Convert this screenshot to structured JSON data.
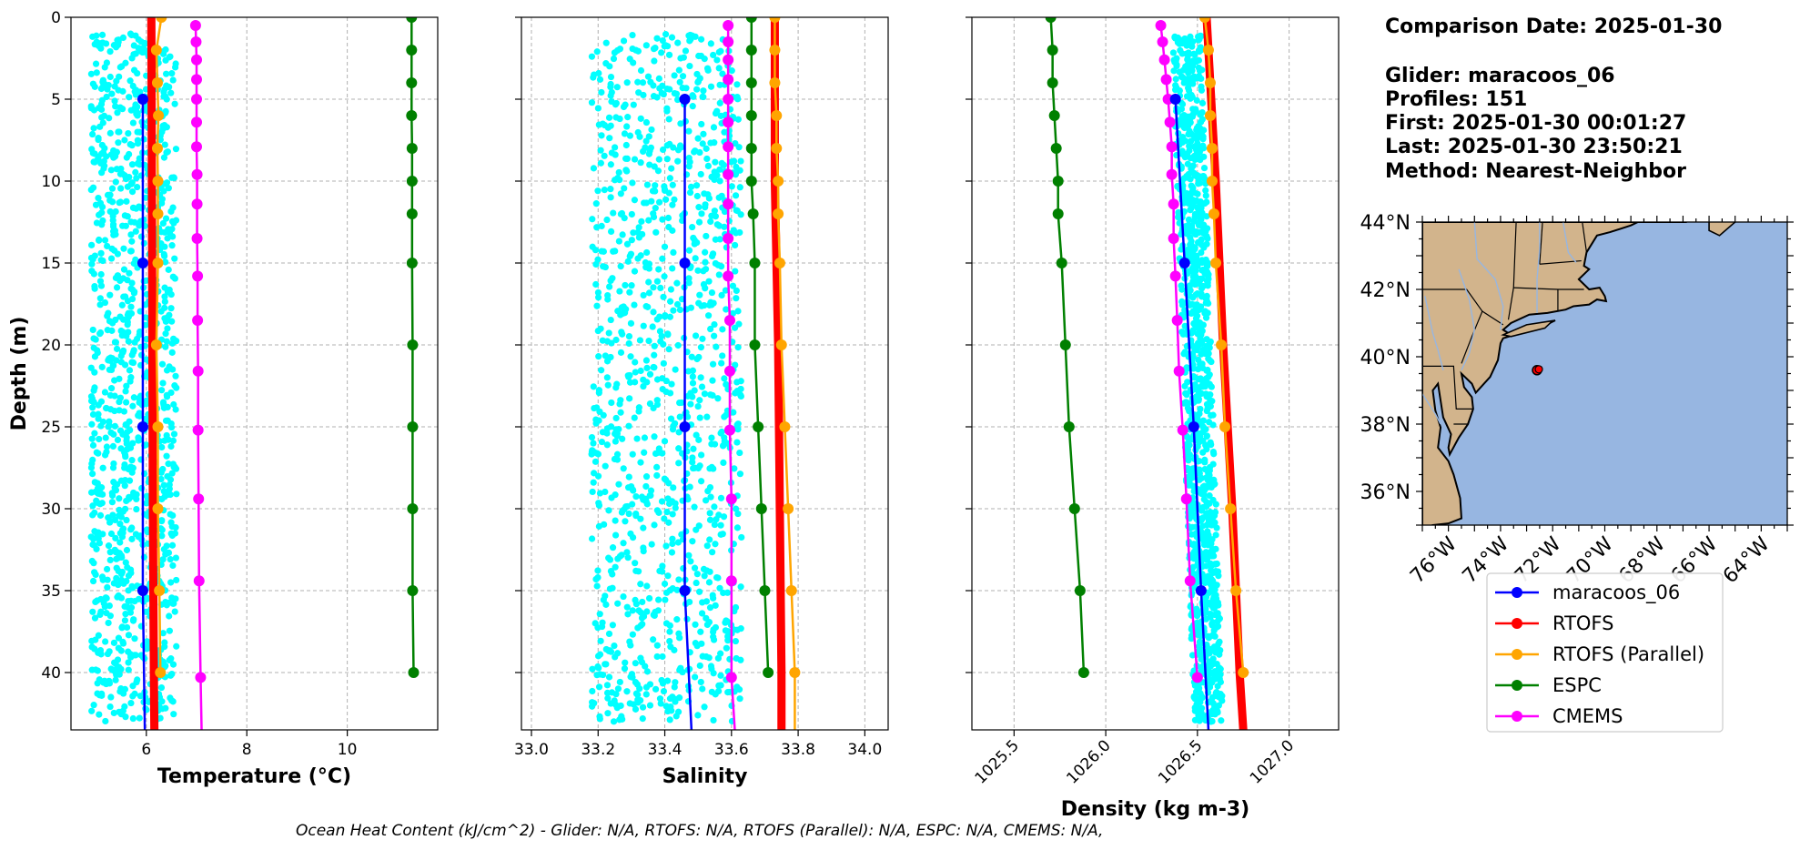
{
  "info": {
    "comparison_date": "Comparison Date: 2025-01-30",
    "glider": "Glider: maracoos_06",
    "profiles": "Profiles: 151",
    "first": "First: 2025-01-30 00:01:27",
    "last": "Last: 2025-01-30 23:50:21",
    "method": "Method: Nearest-Neighbor"
  },
  "footer": "Ocean Heat Content (kJ/cm^2) - Glider: N/A,  RTOFS: N/A,  RTOFS (Parallel): N/A,  ESPC: N/A,  CMEMS: N/A,",
  "colors": {
    "glider_points": "#00ffff",
    "glider": "#0000ff",
    "rtofs": "#ff0000",
    "rtofs_parallel": "#ffa500",
    "espc": "#008000",
    "cmems": "#ff00ff",
    "land": "#d2b48c",
    "ocean": "#97b6e1"
  },
  "legend": {
    "items": [
      {
        "label": "maracoos_06",
        "color": "#0000ff"
      },
      {
        "label": "RTOFS",
        "color": "#ff0000"
      },
      {
        "label": "RTOFS (Parallel)",
        "color": "#ffa500"
      },
      {
        "label": "ESPC",
        "color": "#008000"
      },
      {
        "label": "CMEMS",
        "color": "#ff00ff"
      }
    ]
  },
  "map": {
    "lat_labels": [
      "44°N",
      "42°N",
      "40°N",
      "38°N",
      "36°N"
    ],
    "lat_values": [
      44,
      42,
      40,
      38,
      36
    ],
    "lon_labels": [
      "76°W",
      "74°W",
      "72°W",
      "70°W",
      "68°W",
      "66°W",
      "64°W"
    ],
    "lon_values": [
      -76,
      -74,
      -72,
      -70,
      -68,
      -66,
      -64
    ],
    "extent": {
      "lon": [
        -77,
        -63
      ],
      "lat": [
        35,
        44
      ]
    },
    "glider_location": {
      "lon": -72.6,
      "lat": 39.6
    }
  },
  "chart_data": [
    {
      "type": "line",
      "xlabel": "Temperature (°C)",
      "ylabel": "Depth (m)",
      "xlim": [
        4.5,
        11.8
      ],
      "ylim": [
        43.5,
        0
      ],
      "xticks": [
        6,
        8,
        10
      ],
      "yticks": [
        0,
        5,
        10,
        15,
        20,
        25,
        30,
        35,
        40
      ],
      "grid": true,
      "scatter": {
        "name": "maracoos_06 profiles",
        "x_range": [
          4.9,
          6.6
        ],
        "depth_range": [
          1,
          43
        ]
      },
      "series": [
        {
          "name": "maracoos_06",
          "depth": [
            5,
            15,
            25,
            35,
            43.5
          ],
          "values": [
            5.93,
            5.93,
            5.93,
            5.93,
            5.97
          ]
        },
        {
          "name": "RTOFS",
          "depth": [
            0,
            10,
            20,
            30,
            40,
            43.5
          ],
          "values": [
            6.1,
            6.11,
            6.12,
            6.13,
            6.15,
            6.16
          ]
        },
        {
          "name": "RTOFS (Parallel)",
          "depth": [
            0,
            2,
            4,
            6,
            8,
            10,
            12,
            15,
            20,
            25,
            30,
            35,
            40
          ],
          "values": [
            6.3,
            6.2,
            6.22,
            6.24,
            6.22,
            6.23,
            6.23,
            6.23,
            6.2,
            6.23,
            6.23,
            6.26,
            6.28
          ]
        },
        {
          "name": "ESPC",
          "depth": [
            0,
            2,
            4,
            6,
            8,
            10,
            12,
            15,
            20,
            25,
            30,
            35,
            40
          ],
          "values": [
            11.28,
            11.28,
            11.28,
            11.28,
            11.29,
            11.29,
            11.29,
            11.29,
            11.3,
            11.3,
            11.3,
            11.3,
            11.32
          ]
        },
        {
          "name": "CMEMS",
          "depth": [
            0.5,
            1.5,
            2.6,
            3.8,
            5,
            6.4,
            7.9,
            9.6,
            11.4,
            13.5,
            15.8,
            18.5,
            21.6,
            25.2,
            29.4,
            34.4,
            40.3,
            43.5
          ],
          "values": [
            6.98,
            6.99,
            7.0,
            7.0,
            7.0,
            7.0,
            7.0,
            7.01,
            7.01,
            7.01,
            7.02,
            7.02,
            7.03,
            7.03,
            7.04,
            7.05,
            7.08,
            7.1
          ]
        }
      ]
    },
    {
      "type": "line",
      "xlabel": "Salinity",
      "ylabel": "",
      "xlim": [
        32.97,
        34.07
      ],
      "ylim": [
        43.5,
        0
      ],
      "xticks": [
        33.0,
        33.2,
        33.4,
        33.6,
        33.8,
        34.0
      ],
      "yticks": [
        0,
        5,
        10,
        15,
        20,
        25,
        30,
        35,
        40
      ],
      "grid": true,
      "scatter": {
        "name": "maracoos_06 profiles",
        "x_range": [
          33.18,
          33.63
        ],
        "depth_range": [
          1,
          43
        ]
      },
      "series": [
        {
          "name": "maracoos_06",
          "depth": [
            5,
            15,
            25,
            35,
            43.5
          ],
          "values": [
            33.46,
            33.46,
            33.46,
            33.46,
            33.48
          ]
        },
        {
          "name": "RTOFS",
          "depth": [
            0,
            10,
            20,
            30,
            40,
            43.5
          ],
          "values": [
            33.73,
            33.73,
            33.74,
            33.745,
            33.75,
            33.75
          ]
        },
        {
          "name": "RTOFS (Parallel)",
          "depth": [
            0,
            2,
            4,
            6,
            8,
            10,
            12,
            15,
            20,
            25,
            30,
            35,
            40,
            43.5
          ],
          "values": [
            33.73,
            33.73,
            33.73,
            33.735,
            33.735,
            33.74,
            33.74,
            33.745,
            33.75,
            33.76,
            33.77,
            33.78,
            33.79,
            33.79
          ]
        },
        {
          "name": "ESPC",
          "depth": [
            0,
            2,
            4,
            6,
            8,
            10,
            12,
            15,
            20,
            25,
            30,
            35,
            40
          ],
          "values": [
            33.66,
            33.66,
            33.66,
            33.66,
            33.66,
            33.66,
            33.665,
            33.67,
            33.67,
            33.68,
            33.69,
            33.7,
            33.71
          ]
        },
        {
          "name": "CMEMS",
          "depth": [
            0.5,
            1.5,
            2.6,
            3.8,
            5,
            6.4,
            7.9,
            9.6,
            11.4,
            13.5,
            15.8,
            18.5,
            21.6,
            25.2,
            29.4,
            34.4,
            40.3,
            43.5
          ],
          "values": [
            33.59,
            33.59,
            33.59,
            33.59,
            33.59,
            33.59,
            33.59,
            33.59,
            33.59,
            33.59,
            33.59,
            33.595,
            33.595,
            33.595,
            33.6,
            33.6,
            33.6,
            33.61
          ]
        }
      ]
    },
    {
      "type": "line",
      "xlabel": "Density (kg m-3)",
      "ylabel": "",
      "xlim": [
        1025.27,
        1027.27
      ],
      "ylim": [
        43.5,
        0
      ],
      "xticks": [
        1025.5,
        1026.0,
        1026.5,
        1027.0
      ],
      "xtick_labels": [
        "1025.5",
        "1026.0",
        "1026.5",
        "1027.0"
      ],
      "yticks": [
        0,
        5,
        10,
        15,
        20,
        25,
        30,
        35,
        40
      ],
      "grid": true,
      "scatter": {
        "name": "maracoos_06 profiles",
        "x_range": [
          1026.33,
          1026.62
        ],
        "depth_range": [
          1,
          43
        ]
      },
      "series": [
        {
          "name": "maracoos_06",
          "depth": [
            5,
            15,
            25,
            35,
            43.5
          ],
          "values": [
            1026.38,
            1026.43,
            1026.48,
            1026.52,
            1026.56
          ]
        },
        {
          "name": "RTOFS",
          "depth": [
            0,
            10,
            20,
            30,
            40,
            43.5
          ],
          "values": [
            1026.55,
            1026.6,
            1026.64,
            1026.69,
            1026.73,
            1026.75
          ]
        },
        {
          "name": "RTOFS (Parallel)",
          "depth": [
            0,
            2,
            4,
            6,
            8,
            10,
            12,
            15,
            20,
            25,
            30,
            35,
            40
          ],
          "values": [
            1026.54,
            1026.56,
            1026.57,
            1026.57,
            1026.58,
            1026.58,
            1026.59,
            1026.6,
            1026.63,
            1026.65,
            1026.68,
            1026.71,
            1026.75
          ]
        },
        {
          "name": "ESPC",
          "depth": [
            0,
            2,
            4,
            6,
            8,
            10,
            12,
            15,
            20,
            25,
            30,
            35,
            40
          ],
          "values": [
            1025.7,
            1025.71,
            1025.71,
            1025.72,
            1025.73,
            1025.74,
            1025.74,
            1025.76,
            1025.78,
            1025.8,
            1025.83,
            1025.86,
            1025.88
          ]
        },
        {
          "name": "CMEMS",
          "depth": [
            0.5,
            1.5,
            2.6,
            3.8,
            5,
            6.4,
            7.9,
            9.6,
            11.4,
            13.5,
            15.8,
            18.5,
            21.6,
            25.2,
            29.4,
            34.4,
            40.3
          ],
          "values": [
            1026.3,
            1026.31,
            1026.32,
            1026.33,
            1026.34,
            1026.35,
            1026.36,
            1026.36,
            1026.37,
            1026.37,
            1026.38,
            1026.39,
            1026.4,
            1026.42,
            1026.44,
            1026.46,
            1026.5
          ]
        }
      ]
    }
  ]
}
